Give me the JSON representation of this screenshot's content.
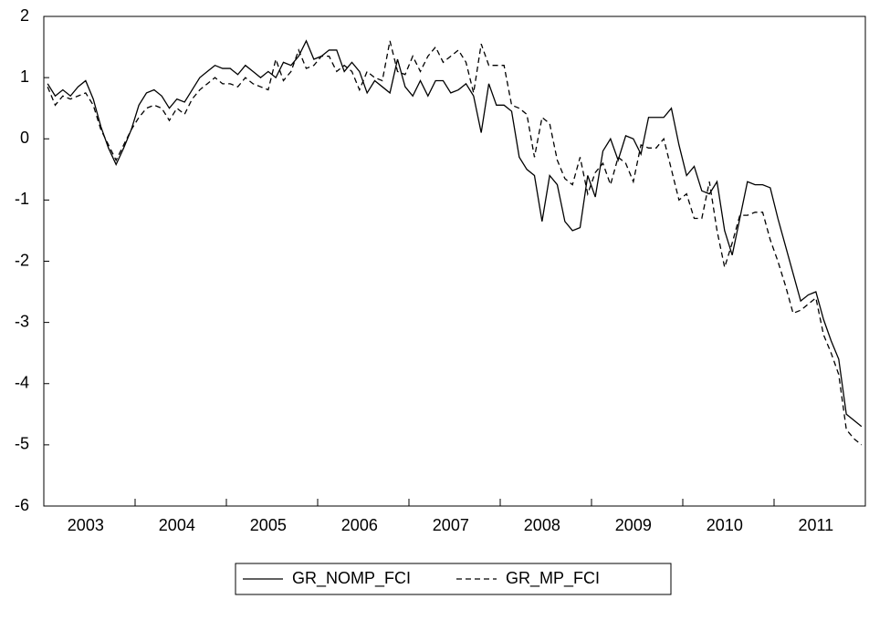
{
  "chart_data": {
    "type": "line",
    "categories": [
      null,
      null,
      null,
      null,
      null,
      "2003",
      null,
      null,
      null,
      null,
      null,
      null,
      null,
      null,
      null,
      null,
      null,
      "2004",
      null,
      null,
      null,
      null,
      null,
      null,
      null,
      null,
      null,
      null,
      null,
      "2005",
      null,
      null,
      null,
      null,
      null,
      null,
      null,
      null,
      null,
      null,
      null,
      "2006",
      null,
      null,
      null,
      null,
      null,
      null,
      null,
      null,
      null,
      null,
      null,
      "2007",
      null,
      null,
      null,
      null,
      null,
      null,
      null,
      null,
      null,
      null,
      null,
      "2008",
      null,
      null,
      null,
      null,
      null,
      null,
      null,
      null,
      null,
      null,
      null,
      "2009",
      null,
      null,
      null,
      null,
      null,
      null,
      null,
      null,
      null,
      null,
      null,
      "2010",
      null,
      null,
      null,
      null,
      null,
      null,
      null,
      null,
      null,
      null,
      null,
      "2011",
      null,
      null,
      null,
      null,
      null,
      null
    ],
    "series": [
      {
        "name": "GR_NOMP_FCI",
        "color": "#000000",
        "line_style": "solid",
        "values": [
          0.9,
          0.7,
          0.8,
          0.7,
          0.85,
          0.95,
          0.65,
          0.2,
          -0.15,
          -0.42,
          -0.15,
          0.15,
          0.55,
          0.75,
          0.8,
          0.7,
          0.5,
          0.65,
          0.6,
          0.8,
          1.0,
          1.1,
          1.2,
          1.15,
          1.15,
          1.05,
          1.2,
          1.1,
          1.0,
          1.1,
          1.0,
          1.25,
          1.2,
          1.35,
          1.6,
          1.3,
          1.35,
          1.45,
          1.45,
          1.1,
          1.25,
          1.1,
          0.75,
          0.95,
          0.85,
          0.75,
          1.3,
          0.85,
          0.7,
          0.95,
          0.7,
          0.95,
          0.95,
          0.75,
          0.8,
          0.9,
          0.7,
          0.1,
          0.9,
          0.55,
          0.55,
          0.45,
          -0.3,
          -0.5,
          -0.6,
          -1.35,
          -0.6,
          -0.75,
          -1.35,
          -1.5,
          -1.45,
          -0.6,
          -0.95,
          -0.2,
          0.0,
          -0.35,
          0.05,
          0.0,
          -0.25,
          0.35,
          0.35,
          0.35,
          0.5,
          -0.1,
          -0.6,
          -0.45,
          -0.85,
          -0.9,
          -0.7,
          -1.5,
          -1.9,
          -1.3,
          -0.7,
          -0.75,
          -0.75,
          -0.8,
          -1.3,
          -1.75,
          -2.2,
          -2.65,
          -2.55,
          -2.5,
          -2.95,
          -3.3,
          -3.6,
          -4.5,
          -4.6,
          -4.7
        ]
      },
      {
        "name": "GR_MP_FCI",
        "color": "#000000",
        "line_style": "dashed",
        "values": [
          0.85,
          0.55,
          0.7,
          0.65,
          0.7,
          0.75,
          0.55,
          0.15,
          -0.1,
          -0.35,
          -0.1,
          0.15,
          0.35,
          0.5,
          0.55,
          0.5,
          0.3,
          0.5,
          0.4,
          0.65,
          0.8,
          0.9,
          1.0,
          0.9,
          0.9,
          0.85,
          1.0,
          0.9,
          0.85,
          0.8,
          1.3,
          0.95,
          1.1,
          1.45,
          1.15,
          1.2,
          1.35,
          1.35,
          1.1,
          1.2,
          1.1,
          0.8,
          1.1,
          1.0,
          0.95,
          1.6,
          1.1,
          1.05,
          1.35,
          1.1,
          1.35,
          1.5,
          1.25,
          1.35,
          1.45,
          1.25,
          0.75,
          1.55,
          1.2,
          1.2,
          1.2,
          0.55,
          0.5,
          0.4,
          -0.3,
          0.35,
          0.25,
          -0.35,
          -0.65,
          -0.75,
          -0.3,
          -0.9,
          -0.55,
          -0.4,
          -0.75,
          -0.3,
          -0.4,
          -0.7,
          -0.1,
          -0.15,
          -0.15,
          0.0,
          -0.5,
          -1.0,
          -0.9,
          -1.3,
          -1.3,
          -0.7,
          -1.5,
          -2.1,
          -1.7,
          -1.25,
          -1.25,
          -1.2,
          -1.2,
          -1.65,
          -2.0,
          -2.4,
          -2.85,
          -2.8,
          -2.7,
          -2.6,
          -3.2,
          -3.5,
          -3.85,
          -4.75,
          -4.9,
          -5.0
        ]
      }
    ],
    "ylim": [
      -6,
      2
    ],
    "yticks": [
      -6,
      -5,
      -4,
      -3,
      -2,
      -1,
      0,
      1,
      2
    ],
    "grid": false,
    "legend": "bottom"
  }
}
